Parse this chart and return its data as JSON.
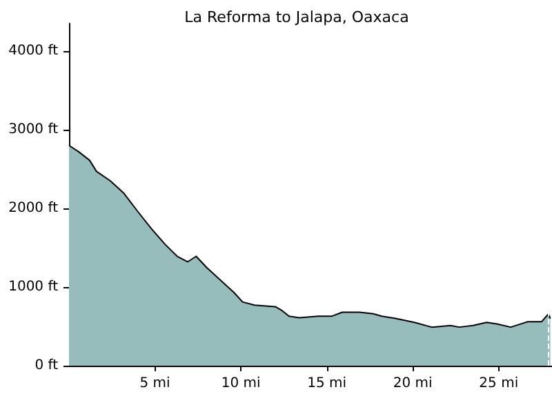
{
  "chart_data": {
    "type": "area",
    "title": "La Reforma to Jalapa, Oaxaca",
    "x": [
      0,
      0.56,
      1.2,
      1.6,
      2.4,
      3.2,
      4.0,
      4.8,
      5.6,
      6.3,
      6.9,
      7.4,
      8.0,
      8.8,
      9.6,
      10.1,
      10.8,
      12.0,
      12.4,
      12.8,
      13.4,
      14.5,
      15.3,
      15.9,
      16.9,
      17.7,
      18.2,
      19.0,
      20.1,
      21.1,
      22.2,
      22.7,
      23.5,
      24.3,
      24.9,
      25.7,
      26.7,
      27.5,
      27.9,
      28.0
    ],
    "values": [
      2800,
      2720,
      2610,
      2470,
      2350,
      2190,
      1960,
      1740,
      1540,
      1390,
      1320,
      1390,
      1250,
      1090,
      930,
      810,
      770,
      750,
      700,
      630,
      610,
      630,
      630,
      680,
      680,
      660,
      630,
      600,
      550,
      490,
      510,
      490,
      510,
      550,
      530,
      490,
      560,
      560,
      660,
      600
    ],
    "color": "#96bcbc",
    "xlim": [
      0,
      28.1
    ],
    "xticks": [
      {
        "value": 5,
        "label": "5 mi"
      },
      {
        "value": 10,
        "label": "10 mi"
      },
      {
        "value": 15,
        "label": "15 mi"
      },
      {
        "value": 20,
        "label": "20 mi"
      },
      {
        "value": 25,
        "label": "25 mi"
      }
    ],
    "ylim": [
      0,
      4350
    ],
    "yticks": [
      {
        "value": 0,
        "label": "0 ft"
      },
      {
        "value": 1000,
        "label": "1000 ft"
      },
      {
        "value": 2000,
        "label": "2000 ft"
      },
      {
        "value": 3000,
        "label": "3000 ft"
      },
      {
        "value": 4000,
        "label": "4000 ft"
      }
    ],
    "ref_lines": [
      {
        "axis": "x",
        "value": 27.9,
        "color": "#ffffff",
        "line_style": "dashed"
      }
    ],
    "grid": false
  }
}
